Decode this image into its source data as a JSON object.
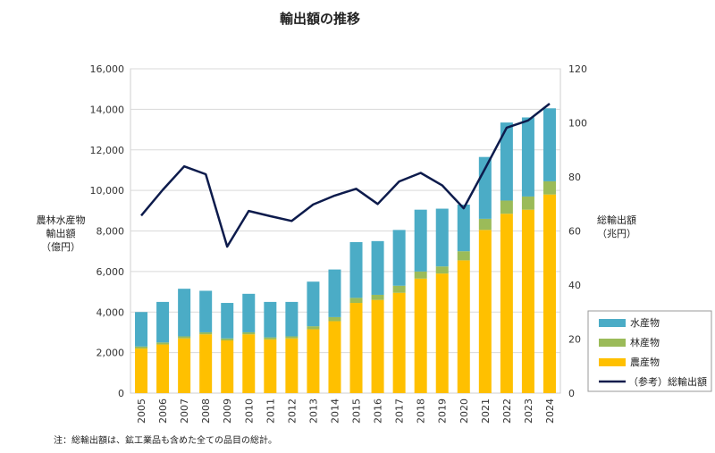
{
  "chart_data": {
    "type": "bar",
    "title": "輸出額の推移",
    "categories": [
      "2005",
      "2006",
      "2007",
      "2008",
      "2009",
      "2010",
      "2011",
      "2012",
      "2013",
      "2014",
      "2015",
      "2016",
      "2017",
      "2018",
      "2019",
      "2020",
      "2021",
      "2022",
      "2023",
      "2024"
    ],
    "ylabel_left": [
      "農林水産物",
      "輸出額",
      "（億円）"
    ],
    "ylabel_right": [
      "総輸出額",
      "（兆円）"
    ],
    "ylim_left": [
      0,
      16000
    ],
    "yticks_left": [
      "0",
      "2,000",
      "4,000",
      "6,000",
      "8,000",
      "10,000",
      "12,000",
      "14,000",
      "16,000"
    ],
    "ylim_right": [
      0,
      120
    ],
    "yticks_right": [
      "0",
      "20",
      "40",
      "60",
      "80",
      "100",
      "120"
    ],
    "stacked": true,
    "series": [
      {
        "name": "農産物",
        "color": "#ffc000",
        "axis": "left",
        "values": [
          2200,
          2400,
          2700,
          2900,
          2600,
          2900,
          2650,
          2700,
          3150,
          3550,
          4450,
          4600,
          4950,
          5650,
          5900,
          6550,
          8050,
          8850,
          9050,
          9800
        ]
      },
      {
        "name": "林産物",
        "color": "#9bbb59",
        "axis": "left",
        "values": [
          100,
          100,
          100,
          100,
          100,
          100,
          100,
          100,
          150,
          200,
          250,
          250,
          350,
          350,
          350,
          450,
          550,
          650,
          650,
          650
        ]
      },
      {
        "name": "水産物",
        "color": "#4bacc6",
        "axis": "left",
        "values": [
          1700,
          2000,
          2350,
          2050,
          1750,
          1900,
          1750,
          1700,
          2200,
          2350,
          2750,
          2650,
          2750,
          3050,
          2850,
          2300,
          3050,
          3850,
          3900,
          3600
        ]
      },
      {
        "name": "（参考）総輸出額",
        "color": "#0d1b4c",
        "axis": "right",
        "type": "line",
        "values": [
          65.7,
          75.2,
          83.9,
          81.0,
          54.2,
          67.4,
          65.5,
          63.7,
          69.8,
          73.1,
          75.6,
          70.0,
          78.3,
          81.5,
          76.9,
          68.4,
          83.1,
          98.2,
          100.9,
          107.1
        ]
      }
    ],
    "legend_position": "bottom-right",
    "note": "注：総輸出額は、鉱工業品も含めた全ての品目の総計。"
  }
}
